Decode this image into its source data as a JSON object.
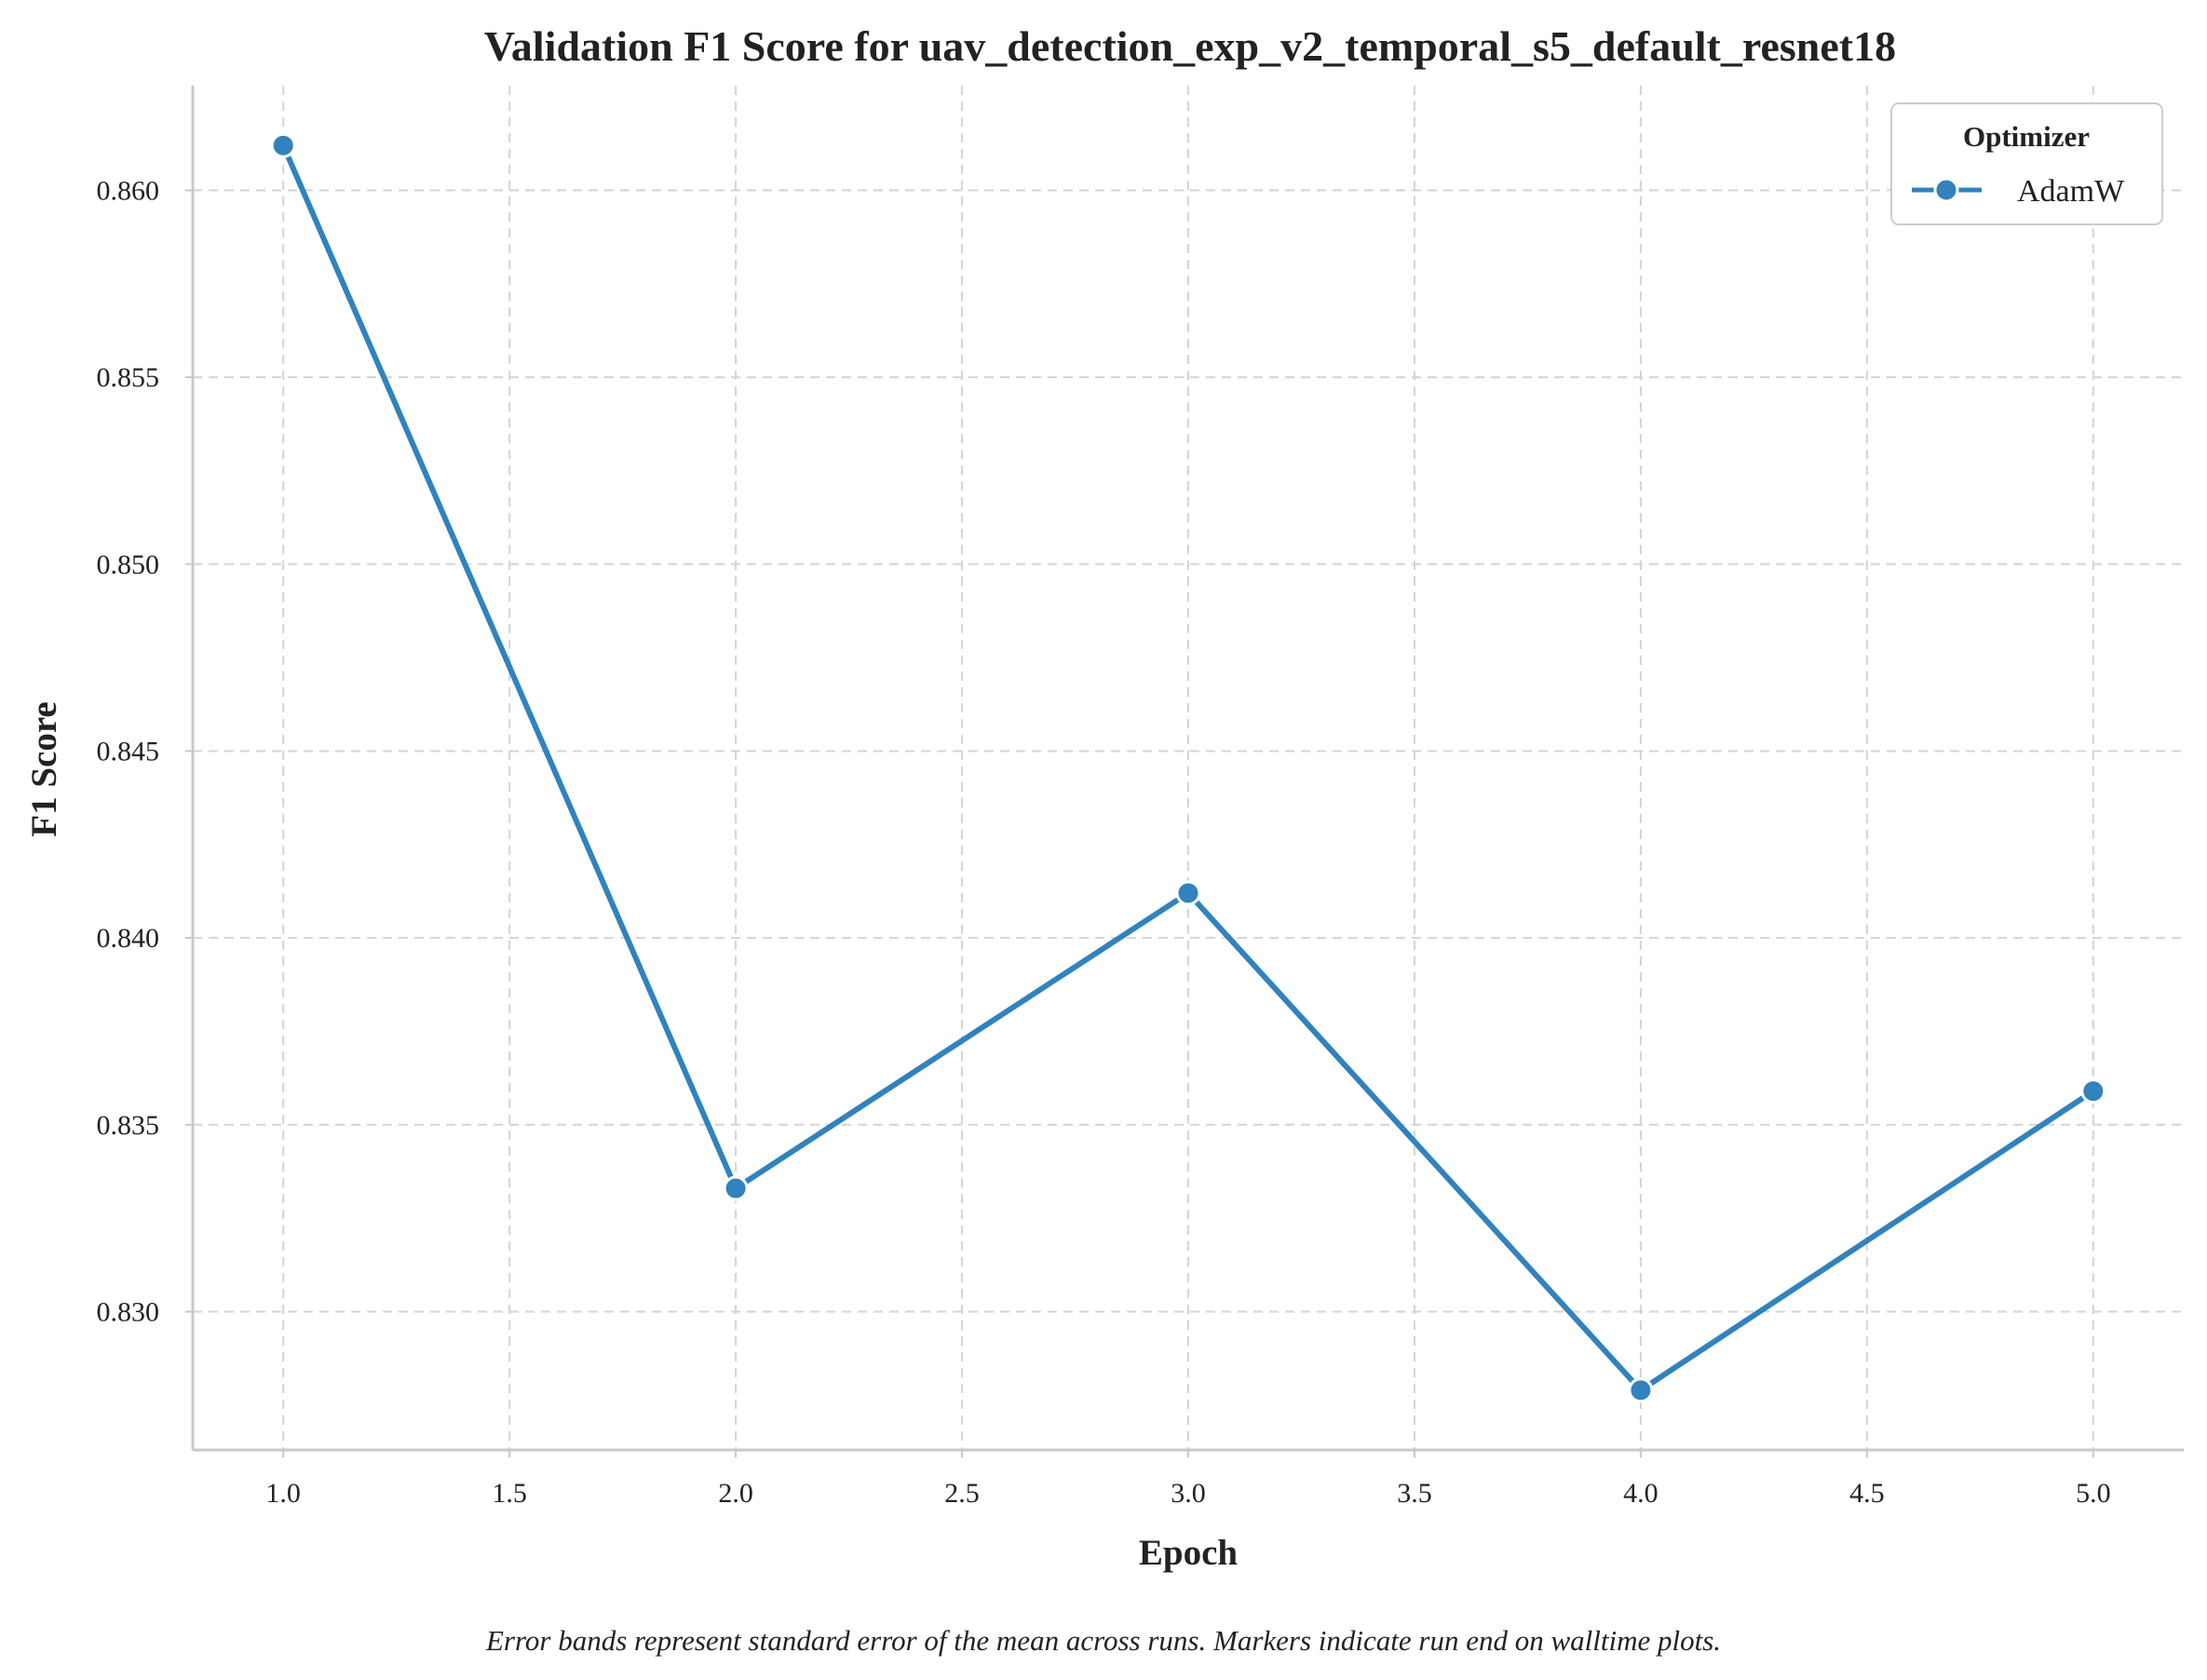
{
  "chart_data": {
    "type": "line",
    "title": "Validation F1 Score for uav_detection_exp_v2_temporal_s5_default_resnet18",
    "xlabel": "Epoch",
    "ylabel": "F1 Score",
    "caption": "Error bands represent standard error of the mean across runs. Markers indicate run end on walltime plots.",
    "x": [
      1,
      2,
      3,
      4,
      5
    ],
    "series": [
      {
        "name": "AdamW",
        "values": [
          0.8612,
          0.8333,
          0.8412,
          0.8279,
          0.8359
        ],
        "color": "#3182bd"
      }
    ],
    "xlim": [
      0.8,
      5.2
    ],
    "ylim": [
      0.8263,
      0.8628
    ],
    "xticks": [
      1.0,
      1.5,
      2.0,
      2.5,
      3.0,
      3.5,
      4.0,
      4.5,
      5.0
    ],
    "xtick_labels": [
      "1.0",
      "1.5",
      "2.0",
      "2.5",
      "3.0",
      "3.5",
      "4.0",
      "4.5",
      "5.0"
    ],
    "yticks": [
      0.83,
      0.835,
      0.84,
      0.845,
      0.85,
      0.855,
      0.86
    ],
    "ytick_labels": [
      "0.830",
      "0.835",
      "0.840",
      "0.845",
      "0.850",
      "0.855",
      "0.860"
    ],
    "grid": true,
    "legend": {
      "title": "Optimizer",
      "placement": "top-right"
    }
  }
}
